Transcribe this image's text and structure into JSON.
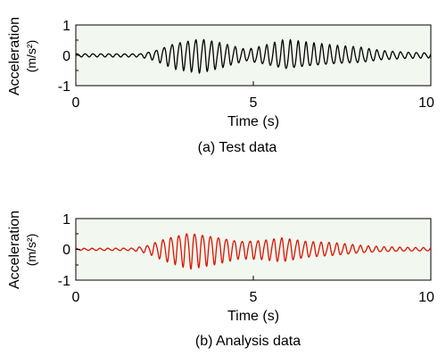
{
  "chart_data": [
    {
      "type": "line",
      "caption": "(a) Test data",
      "xlabel": "Time (s)",
      "ylabel": "Acceleration",
      "ylabel_unit": "(m/s²)",
      "xlim": [
        0,
        10
      ],
      "ylim": [
        -1,
        1
      ],
      "xticks": [
        0,
        5,
        10
      ],
      "yticks": [
        1,
        0,
        -1
      ],
      "background": "#f2f8ef",
      "series": [
        {
          "color": "#000000",
          "description": "oscillation ~4.5 Hz; small amplitude until ~2.2 s, bursts peaking near 3.5 s and 5.8 s, decaying after ~8 s",
          "envelope": [
            [
              0,
              0.05
            ],
            [
              1.8,
              0.05
            ],
            [
              2.2,
              0.15
            ],
            [
              2.8,
              0.42
            ],
            [
              3.5,
              0.55
            ],
            [
              4.1,
              0.4
            ],
            [
              4.8,
              0.18
            ],
            [
              5.3,
              0.3
            ],
            [
              5.9,
              0.48
            ],
            [
              6.6,
              0.38
            ],
            [
              7.3,
              0.3
            ],
            [
              8,
              0.25
            ],
            [
              8.6,
              0.15
            ],
            [
              9.3,
              0.1
            ],
            [
              10,
              0.08
            ]
          ]
        }
      ]
    },
    {
      "type": "line",
      "caption": "(b) Analysis data",
      "xlabel": "Time (s)",
      "ylabel": "Acceleration",
      "ylabel_unit": "(m/s²)",
      "xlim": [
        0,
        10
      ],
      "ylim": [
        -1,
        1
      ],
      "xticks": [
        0,
        5,
        10
      ],
      "yticks": [
        1,
        0,
        -1
      ],
      "background": "#f2f8ef",
      "series": [
        {
          "color": "#dd1100",
          "description": "oscillation ~4.5 Hz; small amplitude until ~2 s, largest burst near 3.2 s, secondary burst near 5.8 s, decaying after ~8 s",
          "envelope": [
            [
              0,
              0.03
            ],
            [
              1.6,
              0.04
            ],
            [
              2.0,
              0.12
            ],
            [
              2.5,
              0.35
            ],
            [
              3.2,
              0.58
            ],
            [
              3.9,
              0.45
            ],
            [
              4.6,
              0.28
            ],
            [
              5.2,
              0.3
            ],
            [
              5.8,
              0.38
            ],
            [
              6.5,
              0.25
            ],
            [
              7.3,
              0.2
            ],
            [
              8,
              0.12
            ],
            [
              8.6,
              0.08
            ],
            [
              9.3,
              0.06
            ],
            [
              10,
              0.05
            ]
          ]
        }
      ]
    }
  ]
}
